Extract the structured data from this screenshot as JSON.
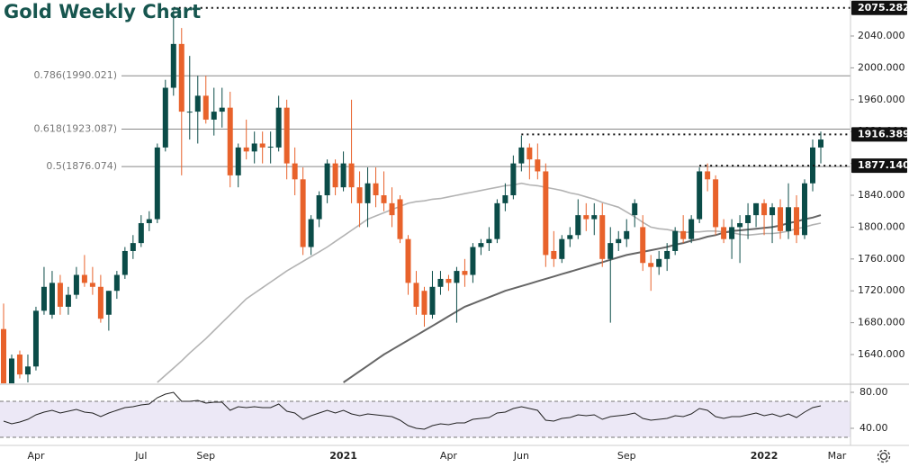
{
  "chart_data": {
    "type": "candlestick",
    "title": "Gold Weekly Chart",
    "up_color": "#0b4c48",
    "down_color": "#e8622b",
    "categories": [
      null,
      null,
      null,
      null,
      "Apr",
      null,
      null,
      null,
      null,
      null,
      null,
      null,
      null,
      null,
      null,
      null,
      null,
      "Jul",
      null,
      null,
      null,
      null,
      null,
      null,
      null,
      "Sep",
      null,
      null,
      null,
      null,
      null,
      null,
      null,
      null,
      null,
      null,
      null,
      null,
      null,
      null,
      null,
      null,
      "2021",
      null,
      null,
      null,
      null,
      null,
      null,
      null,
      null,
      null,
      null,
      null,
      null,
      "Apr",
      null,
      null,
      null,
      null,
      null,
      null,
      null,
      null,
      "Jun",
      null,
      null,
      null,
      null,
      null,
      null,
      null,
      null,
      null,
      null,
      null,
      null,
      "Sep",
      null,
      null,
      null,
      null,
      null,
      null,
      null,
      null,
      null,
      null,
      null,
      null,
      null,
      null,
      null,
      null,
      "2022",
      null,
      null,
      null,
      null,
      null,
      null,
      null,
      null,
      "Mar"
    ],
    "ohlc": [
      [
        1672,
        1704,
        1560,
        1590
      ],
      [
        1590,
        1640,
        1575,
        1635
      ],
      [
        1640,
        1645,
        1610,
        1615
      ],
      [
        1615,
        1640,
        1605,
        1625
      ],
      [
        1625,
        1700,
        1620,
        1695
      ],
      [
        1695,
        1750,
        1690,
        1725
      ],
      [
        1690,
        1745,
        1685,
        1730
      ],
      [
        1730,
        1740,
        1690,
        1700
      ],
      [
        1700,
        1725,
        1690,
        1715
      ],
      [
        1715,
        1750,
        1710,
        1740
      ],
      [
        1740,
        1765,
        1725,
        1730
      ],
      [
        1730,
        1750,
        1715,
        1725
      ],
      [
        1725,
        1740,
        1680,
        1685
      ],
      [
        1690,
        1720,
        1670,
        1720
      ],
      [
        1720,
        1745,
        1710,
        1740
      ],
      [
        1740,
        1775,
        1735,
        1770
      ],
      [
        1770,
        1790,
        1760,
        1780
      ],
      [
        1780,
        1815,
        1775,
        1805
      ],
      [
        1805,
        1820,
        1795,
        1810
      ],
      [
        1810,
        1905,
        1805,
        1900
      ],
      [
        1900,
        1985,
        1895,
        1975
      ],
      [
        1975,
        2075,
        1965,
        2030
      ],
      [
        2030,
        2050,
        1865,
        1945
      ],
      [
        1945,
        2015,
        1910,
        1945
      ],
      [
        1945,
        1990,
        1905,
        1965
      ],
      [
        1965,
        1990,
        1930,
        1935
      ],
      [
        1935,
        1975,
        1915,
        1945
      ],
      [
        1945,
        1975,
        1925,
        1950
      ],
      [
        1950,
        1970,
        1850,
        1865
      ],
      [
        1865,
        1905,
        1850,
        1900
      ],
      [
        1900,
        1935,
        1885,
        1895
      ],
      [
        1895,
        1920,
        1880,
        1905
      ],
      [
        1905,
        1920,
        1880,
        1900
      ],
      [
        1900,
        1920,
        1880,
        1901
      ],
      [
        1900,
        1965,
        1895,
        1950
      ],
      [
        1950,
        1960,
        1860,
        1880
      ],
      [
        1880,
        1900,
        1840,
        1860
      ],
      [
        1860,
        1875,
        1765,
        1775
      ],
      [
        1775,
        1815,
        1765,
        1810
      ],
      [
        1810,
        1845,
        1800,
        1840
      ],
      [
        1840,
        1885,
        1830,
        1880
      ],
      [
        1880,
        1885,
        1840,
        1850
      ],
      [
        1850,
        1895,
        1845,
        1880
      ],
      [
        1880,
        1960,
        1830,
        1850
      ],
      [
        1850,
        1870,
        1800,
        1830
      ],
      [
        1830,
        1875,
        1800,
        1855
      ],
      [
        1855,
        1875,
        1825,
        1840
      ],
      [
        1840,
        1870,
        1820,
        1830
      ],
      [
        1830,
        1850,
        1800,
        1815
      ],
      [
        1835,
        1840,
        1780,
        1785
      ],
      [
        1785,
        1790,
        1715,
        1730
      ],
      [
        1730,
        1745,
        1690,
        1700
      ],
      [
        1720,
        1725,
        1675,
        1690
      ],
      [
        1690,
        1745,
        1685,
        1725
      ],
      [
        1725,
        1745,
        1715,
        1735
      ],
      [
        1735,
        1740,
        1720,
        1730
      ],
      [
        1730,
        1750,
        1680,
        1745
      ],
      [
        1745,
        1760,
        1725,
        1740
      ],
      [
        1740,
        1780,
        1730,
        1775
      ],
      [
        1775,
        1785,
        1765,
        1780
      ],
      [
        1780,
        1800,
        1770,
        1785
      ],
      [
        1785,
        1835,
        1780,
        1830
      ],
      [
        1830,
        1855,
        1820,
        1840
      ],
      [
        1840,
        1890,
        1835,
        1880
      ],
      [
        1880,
        1915,
        1870,
        1900
      ],
      [
        1900,
        1905,
        1860,
        1885
      ],
      [
        1885,
        1905,
        1860,
        1870
      ],
      [
        1870,
        1880,
        1750,
        1765
      ],
      [
        1770,
        1795,
        1750,
        1760
      ],
      [
        1760,
        1790,
        1755,
        1785
      ],
      [
        1785,
        1800,
        1775,
        1790
      ],
      [
        1790,
        1835,
        1785,
        1815
      ],
      [
        1815,
        1830,
        1795,
        1810
      ],
      [
        1810,
        1830,
        1790,
        1815
      ],
      [
        1815,
        1830,
        1750,
        1760
      ],
      [
        1760,
        1800,
        1680,
        1780
      ],
      [
        1780,
        1795,
        1770,
        1785
      ],
      [
        1785,
        1810,
        1775,
        1795
      ],
      [
        1815,
        1835,
        1800,
        1830
      ],
      [
        1800,
        1815,
        1745,
        1755
      ],
      [
        1755,
        1765,
        1720,
        1750
      ],
      [
        1750,
        1770,
        1740,
        1760
      ],
      [
        1760,
        1780,
        1745,
        1770
      ],
      [
        1770,
        1800,
        1765,
        1795
      ],
      [
        1795,
        1815,
        1780,
        1785
      ],
      [
        1785,
        1815,
        1780,
        1810
      ],
      [
        1810,
        1875,
        1805,
        1870
      ],
      [
        1870,
        1880,
        1845,
        1860
      ],
      [
        1860,
        1865,
        1790,
        1800
      ],
      [
        1800,
        1810,
        1780,
        1785
      ],
      [
        1785,
        1810,
        1760,
        1800
      ],
      [
        1800,
        1815,
        1755,
        1805
      ],
      [
        1805,
        1830,
        1785,
        1815
      ],
      [
        1815,
        1830,
        1800,
        1830
      ],
      [
        1830,
        1835,
        1790,
        1815
      ],
      [
        1815,
        1830,
        1780,
        1825
      ],
      [
        1825,
        1835,
        1785,
        1795
      ],
      [
        1795,
        1855,
        1785,
        1825
      ],
      [
        1825,
        1840,
        1780,
        1790
      ],
      [
        1790,
        1860,
        1785,
        1855
      ],
      [
        1855,
        1910,
        1845,
        1900
      ],
      [
        1900,
        1920,
        1880,
        1910
      ],
      null,
      null
    ],
    "series": [
      {
        "color": "#b3b3b3",
        "values": [
          null,
          null,
          null,
          null,
          null,
          null,
          null,
          null,
          null,
          null,
          null,
          null,
          null,
          null,
          null,
          null,
          null,
          null,
          null,
          1605,
          1614,
          1623,
          1632,
          1642,
          1651,
          1660,
          1670,
          1680,
          1690,
          1700,
          1710,
          1717,
          1724,
          1731,
          1738,
          1745,
          1751,
          1757,
          1763,
          1769,
          1775,
          1782,
          1789,
          1796,
          1803,
          1810,
          1814,
          1818,
          1822,
          1826,
          1830,
          1832,
          1833,
          1835,
          1836,
          1838,
          1840,
          1842,
          1844,
          1846,
          1848,
          1850,
          1852,
          1853,
          1855,
          1853,
          1852,
          1850,
          1848,
          1846,
          1843,
          1841,
          1838,
          1835,
          1831,
          1828,
          1825,
          1819,
          1813,
          1806,
          1800,
          1798,
          1797,
          1795,
          1793,
          1794,
          1794,
          1795,
          1795,
          1794,
          1793,
          1791,
          1790,
          1791,
          1792,
          1792,
          1793,
          1795,
          1798,
          1800,
          1803,
          1805,
          null,
          null
        ]
      },
      {
        "color": "#666666",
        "values": [
          null,
          null,
          null,
          null,
          null,
          null,
          null,
          null,
          null,
          null,
          null,
          null,
          null,
          null,
          null,
          null,
          null,
          null,
          null,
          null,
          null,
          null,
          null,
          null,
          null,
          null,
          null,
          null,
          null,
          null,
          null,
          null,
          null,
          null,
          null,
          null,
          null,
          null,
          null,
          null,
          null,
          null,
          1605,
          1612,
          1619,
          1626,
          1633,
          1640,
          1646,
          1652,
          1658,
          1664,
          1670,
          1676,
          1682,
          1688,
          1694,
          1700,
          1704,
          1708,
          1712,
          1716,
          1720,
          1723,
          1726,
          1729,
          1732,
          1735,
          1738,
          1741,
          1744,
          1747,
          1750,
          1753,
          1756,
          1759,
          1762,
          1765,
          1767,
          1769,
          1771,
          1773,
          1775,
          1778,
          1780,
          1783,
          1785,
          1788,
          1790,
          1793,
          1795,
          1796,
          1797,
          1798,
          1799,
          1800,
          1802,
          1805,
          1807,
          1810,
          1812,
          1815,
          null,
          null
        ]
      }
    ],
    "ylim": [
      1605,
      2085.2
    ],
    "yticks": [
      {
        "value": 1640,
        "label": "1640.000"
      },
      {
        "value": 1680,
        "label": "1680.000"
      },
      {
        "value": 1720,
        "label": "1720.000"
      },
      {
        "value": 1760,
        "label": "1760.000"
      },
      {
        "value": 1800,
        "label": "1800.000"
      },
      {
        "value": 1840,
        "label": "1840.000"
      },
      {
        "value": 1880,
        "label": "1880.000"
      },
      {
        "value": 1920,
        "label": "1920.000"
      },
      {
        "value": 1960,
        "label": "1960.000"
      },
      {
        "value": 2000,
        "label": "2000.000"
      },
      {
        "value": 2040,
        "label": "2040.000"
      }
    ],
    "fib_levels": [
      {
        "value": 1990.021,
        "label": "0.786(1990.021)"
      },
      {
        "value": 1923.087,
        "label": "0.618(1923.087)"
      },
      {
        "value": 1876.074,
        "label": "0.5(1876.074)"
      }
    ],
    "price_markers": [
      {
        "value": 2075.282,
        "label": "2075.282"
      },
      {
        "value": 1916.389,
        "label": "1916.389"
      },
      {
        "value": 1877.14,
        "label": "1877.140"
      }
    ],
    "rsi": {
      "color": "#222222",
      "band_color": "#ece8f6",
      "band": [
        30,
        70
      ],
      "ylim": [
        24,
        88
      ],
      "yticks": [
        {
          "value": 40,
          "label": "40.00"
        },
        {
          "value": 80,
          "label": "80.00"
        }
      ],
      "values": [
        48,
        45,
        47,
        50,
        55,
        58,
        60,
        57,
        59,
        61,
        58,
        57,
        53,
        57,
        60,
        63,
        64,
        66,
        67,
        74,
        78,
        80,
        70,
        70,
        71,
        68,
        69,
        69,
        60,
        64,
        63,
        64,
        63,
        63,
        67,
        59,
        57,
        50,
        54,
        57,
        60,
        57,
        60,
        56,
        54,
        56,
        55,
        54,
        53,
        49,
        43,
        40,
        39,
        43,
        45,
        44,
        46,
        46,
        50,
        51,
        52,
        57,
        58,
        62,
        64,
        62,
        60,
        49,
        48,
        51,
        52,
        55,
        54,
        55,
        50,
        53,
        54,
        55,
        57,
        51,
        49,
        50,
        51,
        54,
        53,
        56,
        62,
        60,
        53,
        51,
        53,
        53,
        55,
        57,
        54,
        56,
        53,
        56,
        52,
        58,
        63,
        65,
        null,
        null
      ]
    }
  }
}
